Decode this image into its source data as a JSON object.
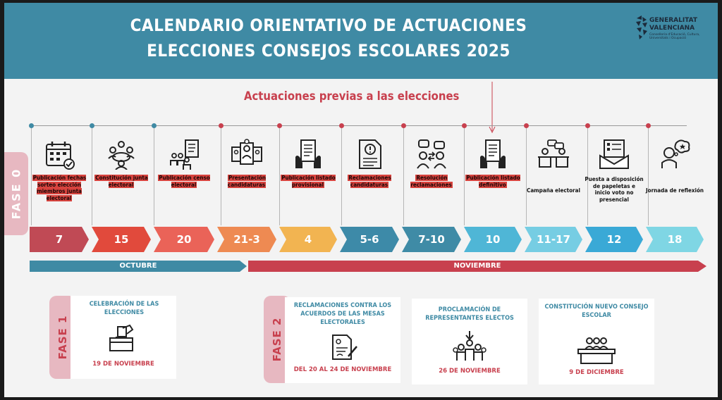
{
  "header": {
    "title_line1": "CALENDARIO ORIENTATIVO DE ACTUACIONES",
    "title_line2": "ELECCIONES CONSEJOS ESCOLARES 2025",
    "logo_line1": "GENERALITAT",
    "logo_line2": "VALENCIANA",
    "logo_line3": "Conselleria d'Educació, Cultura, Universitats i Ocupació"
  },
  "subtitle": "Actuaciones previas a las elecciones",
  "fase0_label": "FASE 0",
  "steps": [
    {
      "icon": "calendar-icon",
      "label": "Publicación fechas sorteo elección miembros junta electoral",
      "highlight": true,
      "date": "7",
      "color": "#c04a55"
    },
    {
      "icon": "meeting-icon",
      "label": "Constitución junta electoral",
      "highlight": true,
      "date": "15",
      "color": "#e14a3c"
    },
    {
      "icon": "census-icon",
      "label": "Publicación censo electoral",
      "highlight": true,
      "date": "20",
      "color": "#ea6358"
    },
    {
      "icon": "candidates-icon",
      "label": "Presentación candidaturas",
      "highlight": true,
      "date": "21-3",
      "color": "#ee8a52"
    },
    {
      "icon": "document-hands-icon",
      "label": "Publicación listado provisional",
      "highlight": true,
      "date": "4",
      "color": "#f2b451"
    },
    {
      "icon": "alert-document-icon",
      "label": "Reclamaciones candidaturas",
      "highlight": true,
      "date": "5-6",
      "color": "#3d8aa8"
    },
    {
      "icon": "exchange-icon",
      "label": "Resolución reclamaciones",
      "highlight": true,
      "date": "7-10",
      "color": "#3f8ba6"
    },
    {
      "icon": "document-hands-icon",
      "label": "Publicación listado definitivo",
      "highlight": true,
      "date": "10",
      "color": "#4fb6d6"
    },
    {
      "icon": "campaign-icon",
      "label": "Campaña electoral",
      "highlight": false,
      "date": "11-17",
      "color": "#76cde3"
    },
    {
      "icon": "ballot-icon",
      "label": "Puesta a disposición de papeletas e inicio voto no presencial",
      "highlight": false,
      "date": "12",
      "color": "#3aa9d6"
    },
    {
      "icon": "thinking-icon",
      "label": "Jornada de reflexión",
      "highlight": false,
      "date": "18",
      "color": "#7fd6e4"
    }
  ],
  "months": {
    "october": "OCTUBRE",
    "november": "NOVIEMBRE"
  },
  "colors": {
    "teal": "#3f8aa4",
    "red": "#c8404e",
    "pink": "#e7b8c1"
  },
  "fase1": {
    "tab": "FASE 1",
    "title": "CELEBRACIÓN DE LAS ELECCIONES",
    "icon": "ballot-box-icon",
    "date": "19 DE NOVIEMBRE"
  },
  "fase2": {
    "tab": "FASE 2",
    "boxes": [
      {
        "title": "RECLAMACIONES CONTRA LOS ACUERDOS DE LAS MESAS ELECTORALES",
        "icon": "signed-document-icon",
        "date": "DEL 20 AL 24 DE NOVIEMBRE"
      },
      {
        "title": "PROCLAMACIÓN DE REPRESENTANTES ELECTOS",
        "icon": "elected-group-icon",
        "date": "26 DE NOVIEMBRE"
      },
      {
        "title": "CONSTITUCIÓN NUEVO CONSEJO ESCOLAR",
        "icon": "council-table-icon",
        "date": "9 DE DICIEMBRE"
      }
    ]
  }
}
